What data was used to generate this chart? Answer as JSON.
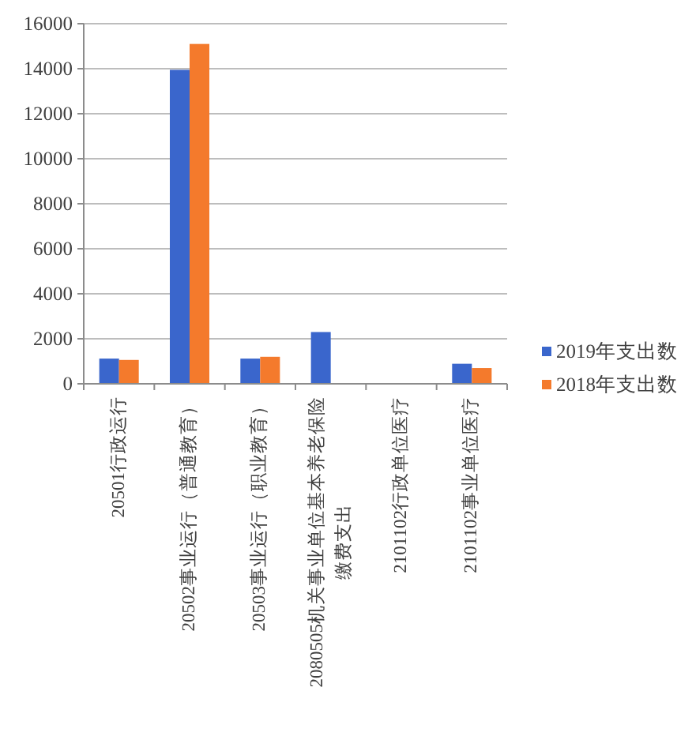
{
  "chart_data": {
    "type": "bar",
    "categories": [
      "20501行政运行",
      "20502事业运行（普通教育）",
      "20503事业运行（职业教育）",
      "2080505机关事业单位基本养老保险缴费支出",
      "2101102行政单位医疗",
      "2101102事业单位医疗"
    ],
    "series": [
      {
        "name": "2019年支出数",
        "color": "#3a66cc",
        "values": [
          1120,
          13950,
          1120,
          2300,
          null,
          890
        ]
      },
      {
        "name": "2018年支出数",
        "color": "#f47a2c",
        "values": [
          1060,
          15100,
          1200,
          null,
          null,
          700
        ]
      }
    ],
    "ylim": [
      0,
      16000
    ],
    "yticks": [
      0,
      2000,
      4000,
      6000,
      8000,
      10000,
      12000,
      14000,
      16000
    ],
    "grid": "y",
    "legend": "right"
  }
}
